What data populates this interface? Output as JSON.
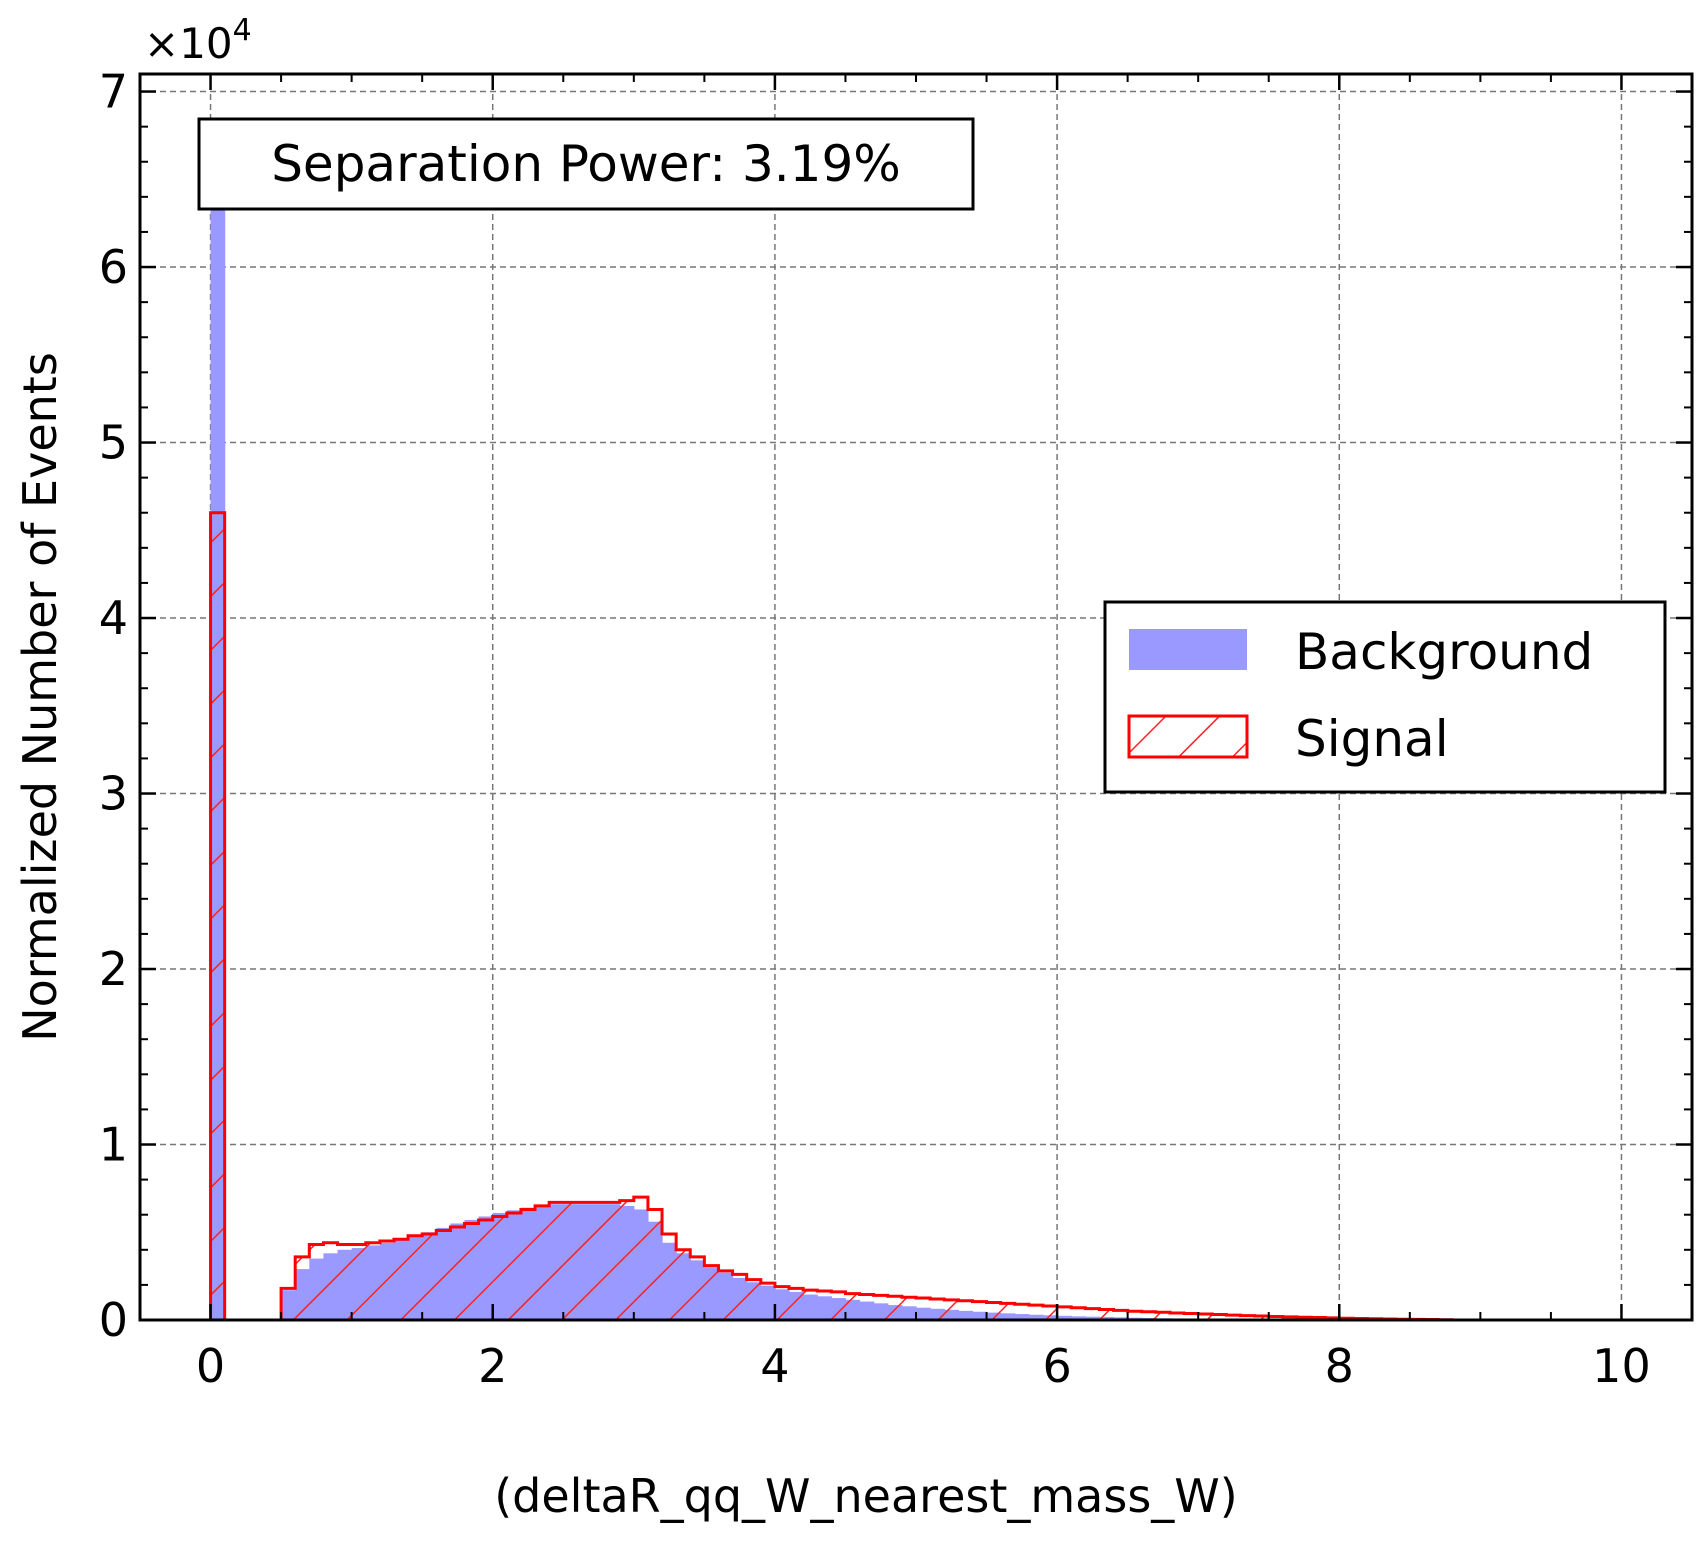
{
  "chart_data": {
    "type": "bar",
    "xlabel": "(deltaR_qq_W_nearest_mass_W)",
    "ylabel": "Normalized Number of Events",
    "y_multiplier": "×10⁴",
    "y_multiplier_base": "×10",
    "y_multiplier_exp": "4",
    "annotation": "Separation Power: 3.19%",
    "xlim": [
      -0.5,
      10.5
    ],
    "ylim": [
      0,
      71000
    ],
    "x_ticks": [
      0,
      2,
      4,
      6,
      8,
      10
    ],
    "x_tick_labels": [
      "0",
      "2",
      "4",
      "6",
      "8",
      "10"
    ],
    "y_ticks": [
      0,
      10000,
      20000,
      30000,
      40000,
      50000,
      60000,
      70000
    ],
    "y_tick_labels": [
      "0",
      "1",
      "2",
      "3",
      "4",
      "5",
      "6",
      "7"
    ],
    "grid": true,
    "legend_position": "center-right",
    "bin_width": 0.1,
    "series": [
      {
        "name": "Background",
        "style": "filled",
        "color": "#9999ff",
        "points": [
          [
            0.0,
            67000
          ],
          [
            0.5,
            1700
          ],
          [
            0.6,
            2900
          ],
          [
            0.7,
            3500
          ],
          [
            0.8,
            3800
          ],
          [
            0.9,
            4000
          ],
          [
            1.0,
            4100
          ],
          [
            1.1,
            4250
          ],
          [
            1.2,
            4400
          ],
          [
            1.3,
            4600
          ],
          [
            1.4,
            4800
          ],
          [
            1.5,
            5000
          ],
          [
            1.6,
            5250
          ],
          [
            1.7,
            5500
          ],
          [
            1.8,
            5700
          ],
          [
            1.9,
            5900
          ],
          [
            2.0,
            6100
          ],
          [
            2.1,
            6250
          ],
          [
            2.2,
            6400
          ],
          [
            2.3,
            6500
          ],
          [
            2.4,
            6600
          ],
          [
            2.5,
            6600
          ],
          [
            2.6,
            6600
          ],
          [
            2.7,
            6600
          ],
          [
            2.8,
            6600
          ],
          [
            2.9,
            6500
          ],
          [
            3.0,
            6300
          ],
          [
            3.1,
            5600
          ],
          [
            3.2,
            4400
          ],
          [
            3.3,
            3800
          ],
          [
            3.4,
            3400
          ],
          [
            3.5,
            3000
          ],
          [
            3.6,
            2700
          ],
          [
            3.7,
            2400
          ],
          [
            3.8,
            2150
          ],
          [
            3.9,
            1950
          ],
          [
            4.0,
            1750
          ],
          [
            4.1,
            1600
          ],
          [
            4.2,
            1450
          ],
          [
            4.3,
            1350
          ],
          [
            4.4,
            1250
          ],
          [
            4.5,
            1150
          ],
          [
            4.6,
            1050
          ],
          [
            4.7,
            950
          ],
          [
            4.8,
            850
          ],
          [
            4.9,
            780
          ],
          [
            5.0,
            700
          ],
          [
            5.1,
            640
          ],
          [
            5.2,
            580
          ],
          [
            5.3,
            520
          ],
          [
            5.4,
            470
          ],
          [
            5.5,
            420
          ],
          [
            5.6,
            380
          ],
          [
            5.7,
            340
          ],
          [
            5.8,
            300
          ],
          [
            5.9,
            270
          ],
          [
            6.0,
            240
          ],
          [
            6.1,
            210
          ],
          [
            6.2,
            190
          ],
          [
            6.3,
            170
          ],
          [
            6.4,
            150
          ],
          [
            6.5,
            130
          ],
          [
            6.6,
            115
          ],
          [
            6.7,
            100
          ],
          [
            6.8,
            90
          ],
          [
            6.9,
            80
          ],
          [
            7.0,
            70
          ],
          [
            7.1,
            60
          ],
          [
            7.2,
            52
          ],
          [
            7.3,
            45
          ],
          [
            7.4,
            38
          ],
          [
            7.5,
            32
          ],
          [
            7.6,
            27
          ],
          [
            7.7,
            22
          ],
          [
            7.8,
            18
          ],
          [
            7.9,
            15
          ],
          [
            8.0,
            12
          ],
          [
            8.1,
            10
          ],
          [
            8.2,
            8
          ],
          [
            8.3,
            6
          ],
          [
            8.4,
            5
          ],
          [
            8.5,
            4
          ],
          [
            8.6,
            3
          ],
          [
            8.7,
            2
          ]
        ]
      },
      {
        "name": "Signal",
        "style": "hatched-outline",
        "color": "#ff0000",
        "points": [
          [
            0.0,
            46000
          ],
          [
            0.5,
            1800
          ],
          [
            0.6,
            3600
          ],
          [
            0.7,
            4300
          ],
          [
            0.8,
            4400
          ],
          [
            0.9,
            4300
          ],
          [
            1.0,
            4300
          ],
          [
            1.1,
            4400
          ],
          [
            1.2,
            4500
          ],
          [
            1.3,
            4600
          ],
          [
            1.4,
            4800
          ],
          [
            1.5,
            4900
          ],
          [
            1.6,
            5100
          ],
          [
            1.7,
            5300
          ],
          [
            1.8,
            5500
          ],
          [
            1.9,
            5700
          ],
          [
            2.0,
            5900
          ],
          [
            2.1,
            6100
          ],
          [
            2.2,
            6300
          ],
          [
            2.3,
            6500
          ],
          [
            2.4,
            6700
          ],
          [
            2.5,
            6700
          ],
          [
            2.6,
            6700
          ],
          [
            2.7,
            6700
          ],
          [
            2.8,
            6700
          ],
          [
            2.9,
            6800
          ],
          [
            3.0,
            7000
          ],
          [
            3.1,
            6300
          ],
          [
            3.2,
            4900
          ],
          [
            3.3,
            4000
          ],
          [
            3.4,
            3600
          ],
          [
            3.5,
            3100
          ],
          [
            3.6,
            2800
          ],
          [
            3.7,
            2600
          ],
          [
            3.8,
            2300
          ],
          [
            3.9,
            2100
          ],
          [
            4.0,
            1900
          ],
          [
            4.1,
            1800
          ],
          [
            4.2,
            1700
          ],
          [
            4.3,
            1650
          ],
          [
            4.4,
            1600
          ],
          [
            4.5,
            1500
          ],
          [
            4.6,
            1450
          ],
          [
            4.7,
            1400
          ],
          [
            4.8,
            1350
          ],
          [
            4.9,
            1300
          ],
          [
            5.0,
            1250
          ],
          [
            5.1,
            1200
          ],
          [
            5.2,
            1150
          ],
          [
            5.3,
            1100
          ],
          [
            5.4,
            1050
          ],
          [
            5.5,
            1000
          ],
          [
            5.6,
            950
          ],
          [
            5.7,
            900
          ],
          [
            5.8,
            850
          ],
          [
            5.9,
            800
          ],
          [
            6.0,
            750
          ],
          [
            6.1,
            700
          ],
          [
            6.2,
            650
          ],
          [
            6.3,
            600
          ],
          [
            6.4,
            550
          ],
          [
            6.5,
            500
          ],
          [
            6.6,
            470
          ],
          [
            6.7,
            440
          ],
          [
            6.8,
            400
          ],
          [
            6.9,
            370
          ],
          [
            7.0,
            340
          ],
          [
            7.1,
            310
          ],
          [
            7.2,
            280
          ],
          [
            7.3,
            250
          ],
          [
            7.4,
            230
          ],
          [
            7.5,
            200
          ],
          [
            7.6,
            180
          ],
          [
            7.7,
            160
          ],
          [
            7.8,
            140
          ],
          [
            7.9,
            120
          ],
          [
            8.0,
            100
          ],
          [
            8.1,
            85
          ],
          [
            8.2,
            70
          ],
          [
            8.3,
            55
          ],
          [
            8.4,
            45
          ],
          [
            8.5,
            35
          ],
          [
            8.6,
            25
          ],
          [
            8.7,
            15
          ]
        ]
      }
    ]
  }
}
